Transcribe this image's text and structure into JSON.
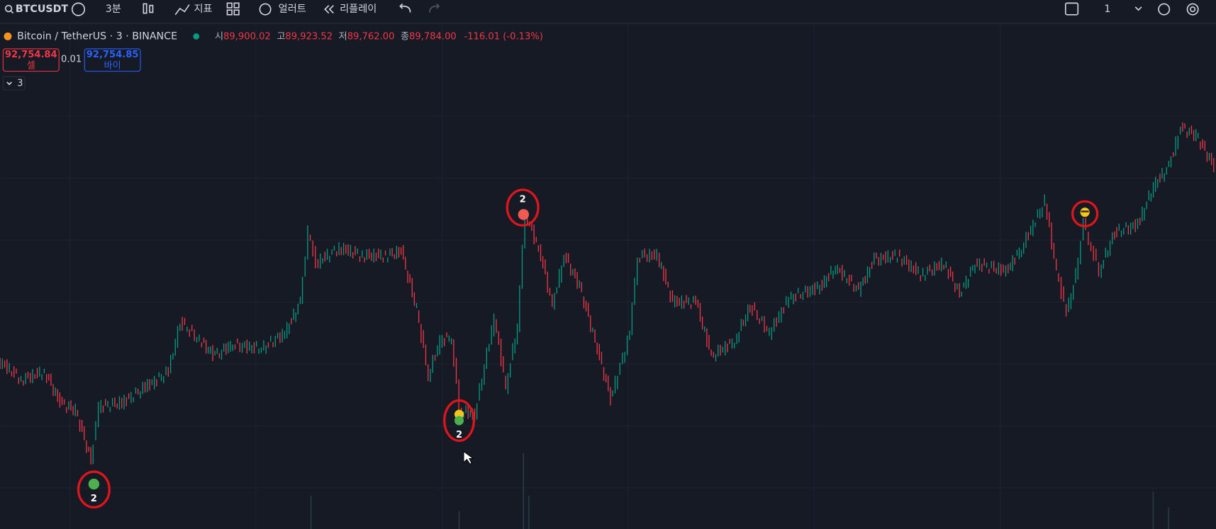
{
  "toolbar": {
    "symbol": "BTCUSDT",
    "interval": "3분",
    "indicators": "지표",
    "alert": "얼러트",
    "replay": "리플레이",
    "layout_count": "1"
  },
  "legend": {
    "title": "Bitcoin / TetherUS · 3 · BINANCE",
    "open_label": "시",
    "open": "89,900.02",
    "high_label": "고",
    "high": "89,923.52",
    "low_label": "저",
    "low": "89,762.00",
    "close_label": "종",
    "close": "89,784.00",
    "change": "-116.01 (-0.13%)"
  },
  "trade": {
    "sell_price": "92,754.84",
    "sell_label": "셀",
    "spread": "0.01",
    "buy_price": "92,754.85",
    "buy_label": "바이"
  },
  "indicator_toggle": "3",
  "markers": [
    {
      "label": "2"
    },
    {
      "label": "2"
    },
    {
      "label": "2"
    }
  ]
}
